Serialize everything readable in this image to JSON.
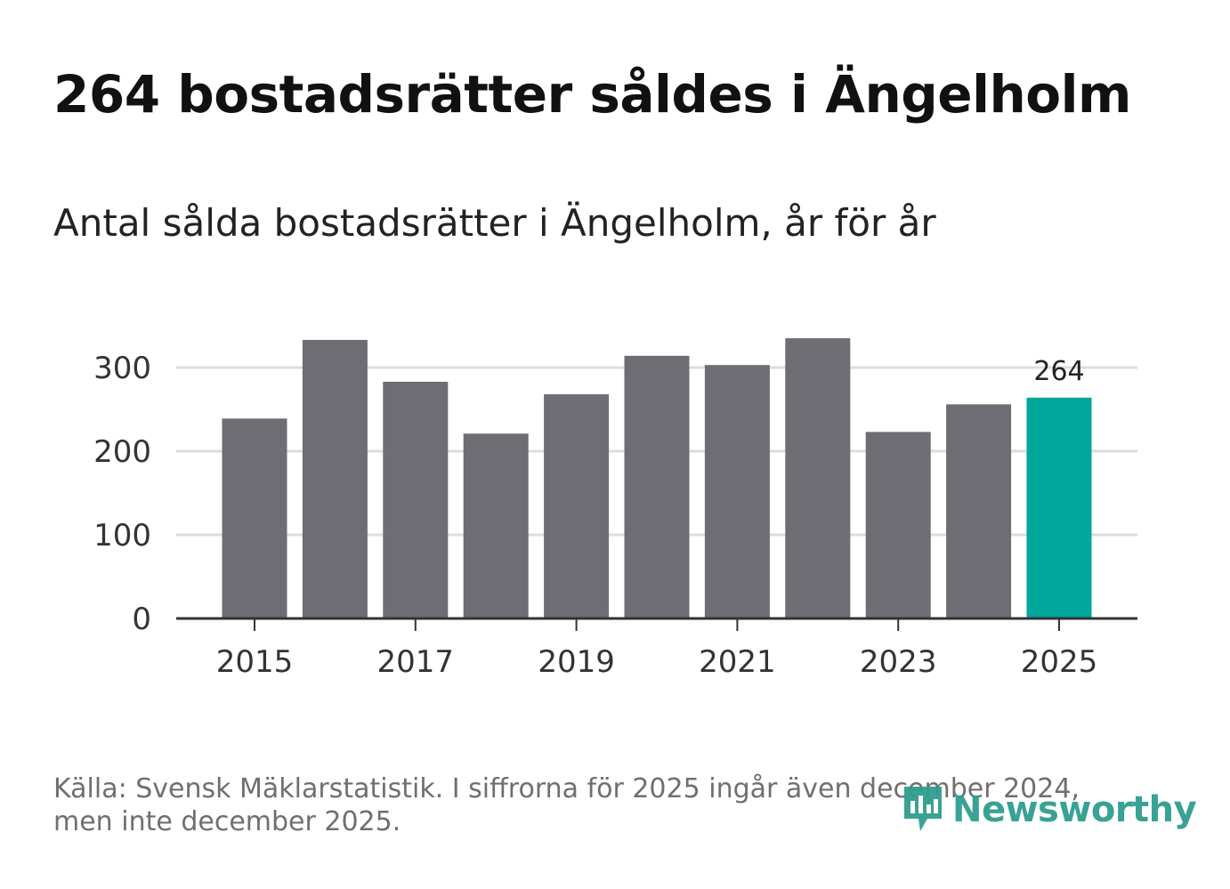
{
  "title": "264 bostadsrätter såldes i Ängelholm",
  "subtitle": "Antal sålda bostadsrätter i Ängelholm, år för år",
  "footnote_line1": "Källa: Svensk Mäklarstatistik. I siffrorna för 2025 ingår även december 2024,",
  "footnote_line2": "men inte december 2025.",
  "logo_text": "Newsworthy",
  "colors": {
    "bar": "#6e6d73",
    "highlight": "#00a79a",
    "grid": "#dddddd",
    "axis": "#333333",
    "logo": "#2f9e8f"
  },
  "chart_data": {
    "type": "bar",
    "categories": [
      "2015",
      "2016",
      "2017",
      "2018",
      "2019",
      "2020",
      "2021",
      "2022",
      "2023",
      "2024",
      "2025"
    ],
    "values": [
      239,
      333,
      283,
      221,
      268,
      314,
      303,
      335,
      223,
      256,
      264
    ],
    "highlight_index": 10,
    "highlight_label": "264",
    "x_tick_labels": [
      "2015",
      "2017",
      "2019",
      "2021",
      "2023",
      "2025"
    ],
    "y_ticks": [
      0,
      100,
      200,
      300
    ],
    "ylim": [
      0,
      350
    ],
    "grid": true,
    "title": "Antal sålda bostadsrätter i Ängelholm, år för år",
    "xlabel": "",
    "ylabel": ""
  }
}
